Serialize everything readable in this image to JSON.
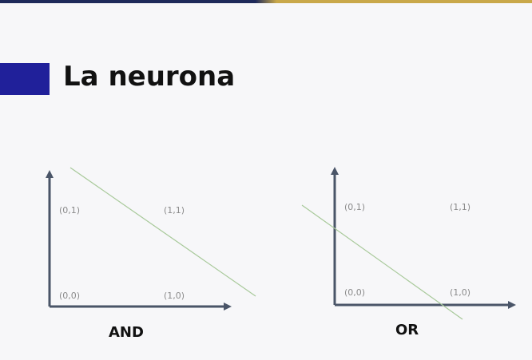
{
  "slide": {
    "title": "La neurona"
  },
  "diagrams": [
    {
      "gate": "AND",
      "points": [
        "(0,1)",
        "(1,1)",
        "(0,0)",
        "(1,0)"
      ]
    },
    {
      "gate": "OR",
      "points": [
        "(0,1)",
        "(1,1)",
        "(0,0)",
        "(1,0)"
      ]
    }
  ],
  "colors": {
    "axis": "#4a5568",
    "boundary_line": "#a8c99a",
    "title_accent": "#20209a"
  }
}
